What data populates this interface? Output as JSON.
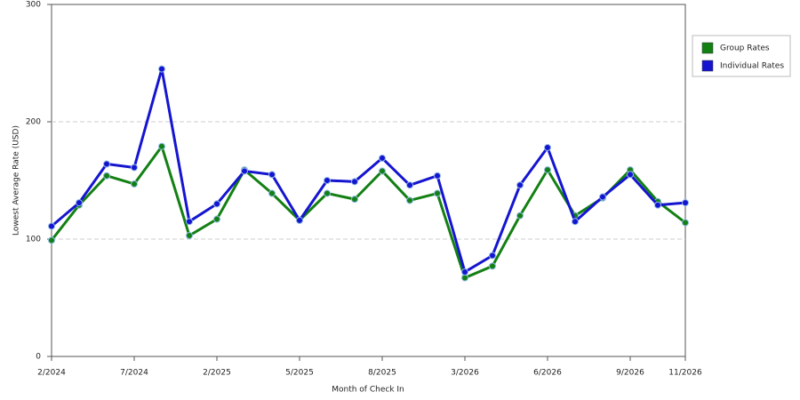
{
  "chart_data": {
    "type": "line",
    "x_label": "Month of Check In",
    "y_label": "Lowest Average Rate (USD)",
    "categories": [
      "2/2024",
      null,
      null,
      "7/2024",
      null,
      null,
      "2/2025",
      null,
      null,
      "5/2025",
      null,
      null,
      "8/2025",
      null,
      null,
      "3/2026",
      null,
      null,
      "6/2026",
      null,
      null,
      "9/2026",
      null,
      "11/2026"
    ],
    "series": [
      {
        "name": "Group Rates",
        "color": "#138013",
        "values": [
          99,
          129,
          154,
          147,
          179,
          103,
          117,
          159,
          139,
          116,
          139,
          134,
          158,
          133,
          139,
          67,
          77,
          120,
          159,
          120,
          135,
          159,
          132,
          114
        ]
      },
      {
        "name": "Individual Rates",
        "color": "#1515d0",
        "values": [
          111,
          131,
          164,
          161,
          245,
          115,
          130,
          158,
          155,
          116,
          150,
          149,
          169,
          146,
          154,
          72,
          86,
          146,
          178,
          115,
          136,
          155,
          129,
          131
        ]
      }
    ],
    "ylim": [
      0,
      300
    ],
    "yticks": [
      0,
      100,
      200,
      300
    ],
    "grid": true,
    "legend": "right"
  }
}
